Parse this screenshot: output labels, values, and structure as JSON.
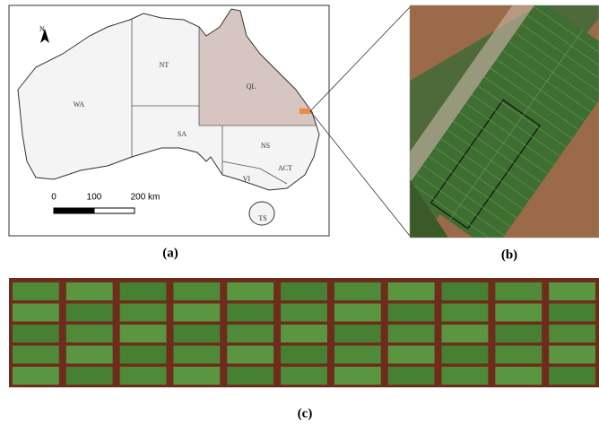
{
  "panel_a": {
    "north": "N",
    "states": [
      "WA",
      "NT",
      "QL",
      "SA",
      "NS",
      "VI",
      "ACT",
      "TS"
    ],
    "scale": [
      "0",
      "100",
      "200 km"
    ],
    "caption": "(a)"
  },
  "panel_b": {
    "caption": "(b)"
  },
  "panel_c": {
    "caption": "(c)"
  }
}
